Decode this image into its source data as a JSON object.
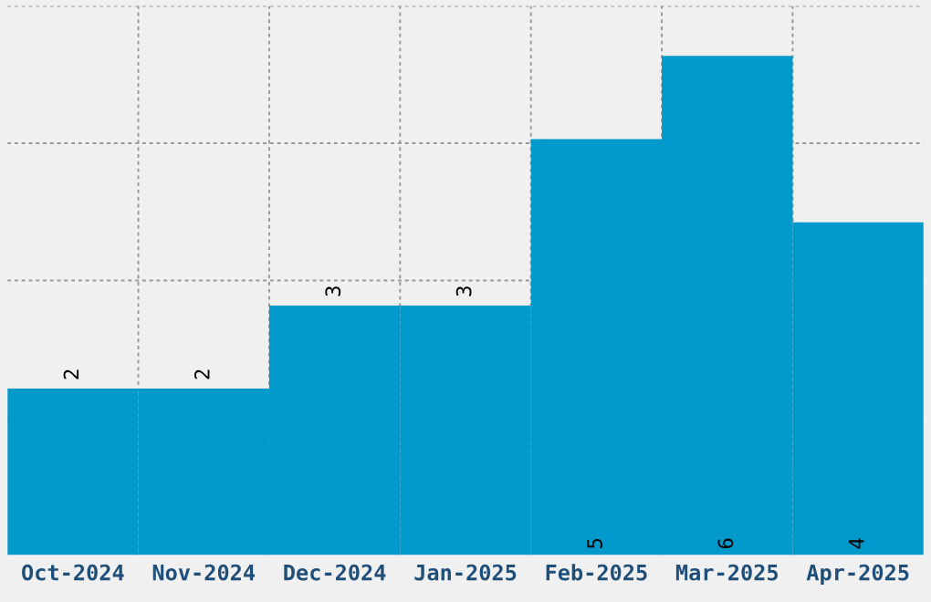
{
  "chart_data": {
    "type": "bar",
    "categories": [
      "Oct-2024",
      "Nov-2024",
      "Dec-2024",
      "Jan-2025",
      "Feb-2025",
      "Mar-2025",
      "Apr-2025"
    ],
    "values": [
      2,
      2,
      3,
      3,
      5,
      6,
      4
    ],
    "color": "#0099cc",
    "ylim": [
      0,
      6.6
    ],
    "yticks": [
      {
        "value": 1.65,
        "label": null
      },
      {
        "value": 3.3,
        "label": null
      },
      {
        "value": 4.95,
        "label": null
      },
      {
        "value": 6.6,
        "label": null
      }
    ],
    "tick_labels": "x",
    "data_labels": true,
    "grid": true
  }
}
